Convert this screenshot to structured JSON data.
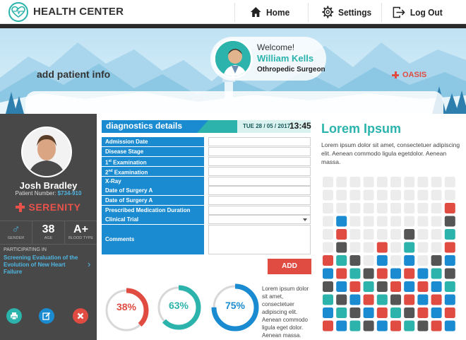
{
  "app": {
    "brand": "HEALTH CENTER"
  },
  "nav": {
    "home": "Home",
    "settings": "Settings",
    "logout": "Log Out"
  },
  "doctor": {
    "welcome": "Welcome!",
    "name": "William Kells",
    "title": "Othropedic Surgeon"
  },
  "banner": {
    "add_patient": "add patient info",
    "oasis": "OASIS"
  },
  "patient": {
    "name": "Josh Bradley",
    "number_label": "Patient Number:",
    "number": "$734-910",
    "program": "SERENITY",
    "stats": [
      {
        "value": "♂",
        "label": "GENDER"
      },
      {
        "value": "38",
        "label": "AGE"
      },
      {
        "value": "A+",
        "label": "BLOOD TYPE"
      }
    ],
    "participating_label": "PARTICIPATING IN",
    "study": "Screening Evaluation of the Evolution of New Heart Failure"
  },
  "diagnostics": {
    "title": "diagnostics details",
    "date": "TUE 28 / 05 / 2017",
    "time": "13:45",
    "fields": [
      "Admission Date",
      "Disease Stage",
      "1st Examination",
      "2nd Examination",
      "X-Ray",
      "Date of Surgery A",
      "Date of Surgery A",
      "Prescribed Medication Duration",
      "Clinical Trial",
      "Comments"
    ],
    "add_button": "ADD"
  },
  "progress": [
    {
      "percent": 38,
      "label": "38%",
      "color": "#e04b42"
    },
    {
      "percent": 63,
      "label": "63%",
      "color": "#2bb3ac"
    },
    {
      "percent": 75,
      "label": "75%",
      "color": "#1a8bd1"
    }
  ],
  "progress_text": "Lorem ipsum dolor sit amet, consectetuer adipiscing elit. Aenean commodo ligula eget dolor. Aenean massa.",
  "right": {
    "title": "Lorem Ipsum",
    "text": "Lorem ipsum dolor sit amet, consectetuer adipiscing elit. Aenean commodo ligula egetdolor. Aenean massa."
  },
  "colors": {
    "teal": "#2bb3ac",
    "blue": "#1a8bd1",
    "red": "#e04b42",
    "dark": "#484848",
    "gray": "#555555"
  },
  "chart_data": {
    "type": "bar",
    "categories": [
      "1",
      "2",
      "3",
      "4",
      "5",
      "6",
      "7",
      "8",
      "9",
      "10"
    ],
    "values": [
      6,
      9,
      6,
      5,
      7,
      5,
      8,
      5,
      6,
      10
    ],
    "value_colors": [
      "#e04b42",
      "#1a8bd1",
      "#2bb3ac",
      "#555555",
      "#1a8bd1",
      "#e04b42",
      "#2bb3ac",
      "#555555",
      "#e04b42",
      "#1a8bd1"
    ],
    "max": 12
  }
}
